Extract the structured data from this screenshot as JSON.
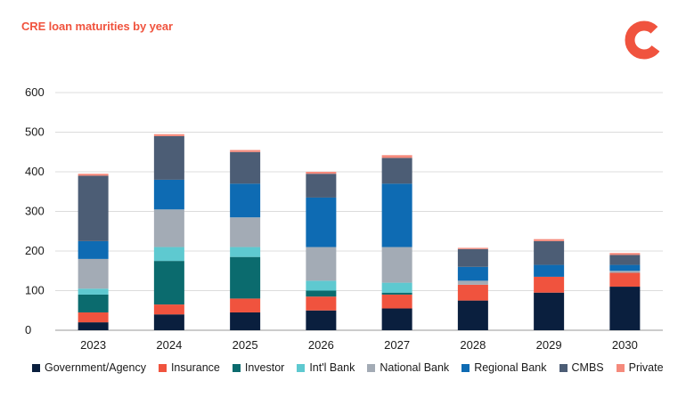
{
  "chart_data": {
    "type": "bar",
    "stacked": true,
    "title": "CRE loan maturities by year",
    "xlabel": "",
    "ylabel": "",
    "ylim": [
      0,
      600
    ],
    "yticks": [
      0,
      100,
      200,
      300,
      400,
      500,
      600
    ],
    "grid": true,
    "legend_position": "bottom",
    "categories": [
      "2023",
      "2024",
      "2025",
      "2026",
      "2027",
      "2028",
      "2029",
      "2030"
    ],
    "series": [
      {
        "name": "Government/Agency",
        "color": "#0a1f3e",
        "values": [
          20,
          40,
          45,
          50,
          55,
          75,
          95,
          110
        ]
      },
      {
        "name": "Insurance",
        "color": "#f0533e",
        "values": [
          25,
          25,
          35,
          35,
          35,
          40,
          40,
          35
        ]
      },
      {
        "name": "Investor",
        "color": "#0b6b6e",
        "values": [
          45,
          110,
          105,
          15,
          5,
          0,
          0,
          0
        ]
      },
      {
        "name": "Int'l Bank",
        "color": "#5ec9d0",
        "values": [
          15,
          35,
          25,
          25,
          25,
          0,
          0,
          0
        ]
      },
      {
        "name": "National Bank",
        "color": "#a3abb5",
        "values": [
          75,
          95,
          75,
          85,
          90,
          10,
          0,
          5
        ]
      },
      {
        "name": "Regional Bank",
        "color": "#0e6bb3",
        "values": [
          45,
          75,
          85,
          125,
          160,
          35,
          30,
          15
        ]
      },
      {
        "name": "CMBS",
        "color": "#4c5d75",
        "values": [
          165,
          110,
          80,
          60,
          65,
          45,
          60,
          25
        ]
      },
      {
        "name": "Private",
        "color": "#f58a7c",
        "values": [
          5,
          5,
          5,
          5,
          7,
          3,
          5,
          5
        ]
      }
    ]
  },
  "logo": {
    "icon": "donut-logo-icon",
    "color": "#f0533e"
  }
}
